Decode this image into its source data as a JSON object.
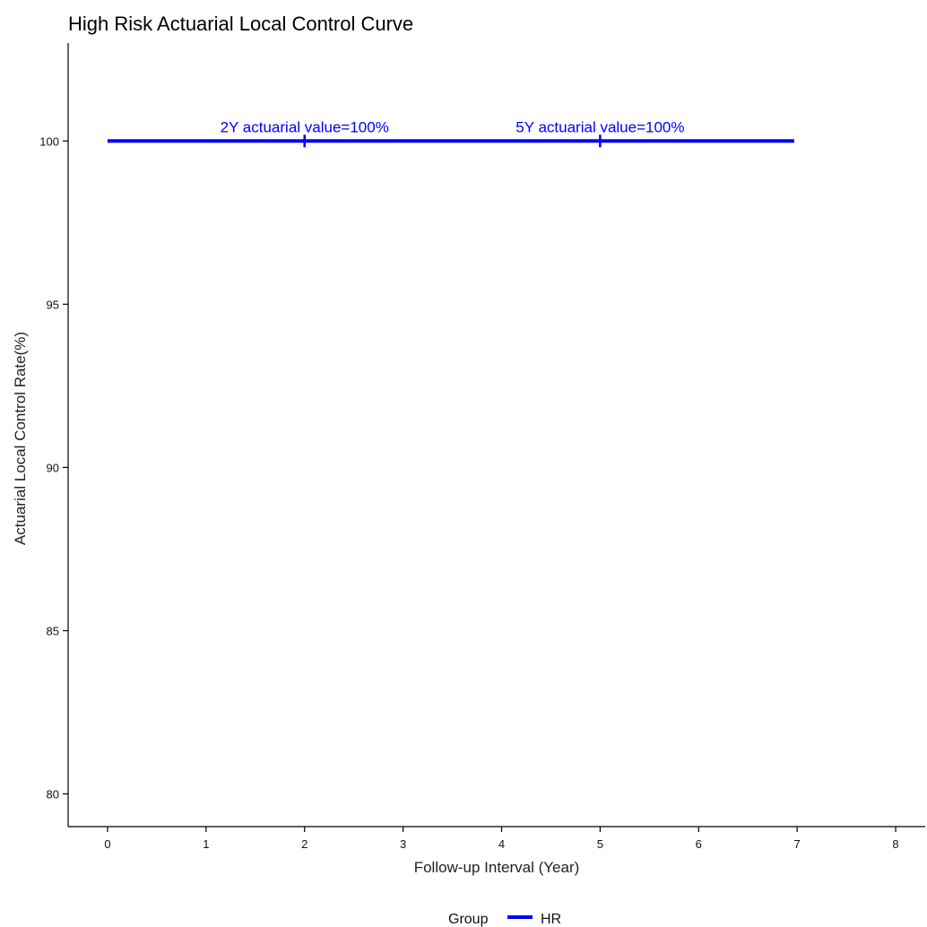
{
  "chart_data": {
    "type": "line",
    "title": "High Risk Actuarial Local Control Curve",
    "xlabel": "Follow-up Interval (Year)",
    "ylabel": "Actuarial Local Control Rate(%)",
    "xlim": [
      -0.4,
      8.3
    ],
    "ylim": [
      79,
      103
    ],
    "xticks": [
      0,
      1,
      2,
      3,
      4,
      5,
      6,
      7,
      8
    ],
    "yticks": [
      80,
      85,
      90,
      95,
      100
    ],
    "grid": false,
    "legend": {
      "title": "Group",
      "position": "bottom",
      "entries": [
        {
          "label": "HR",
          "color": "#0000ff"
        }
      ]
    },
    "series": [
      {
        "name": "HR",
        "color": "#0000ff",
        "x": [
          0,
          6.97
        ],
        "y": [
          100,
          100
        ],
        "censor_marks": [
          2,
          5
        ]
      }
    ],
    "annotations": [
      {
        "text": "2Y actuarial value=100%",
        "x": 2,
        "y": 100,
        "color": "#0000ff"
      },
      {
        "text": "5Y actuarial value=100%",
        "x": 5,
        "y": 100,
        "color": "#0000ff"
      }
    ]
  }
}
